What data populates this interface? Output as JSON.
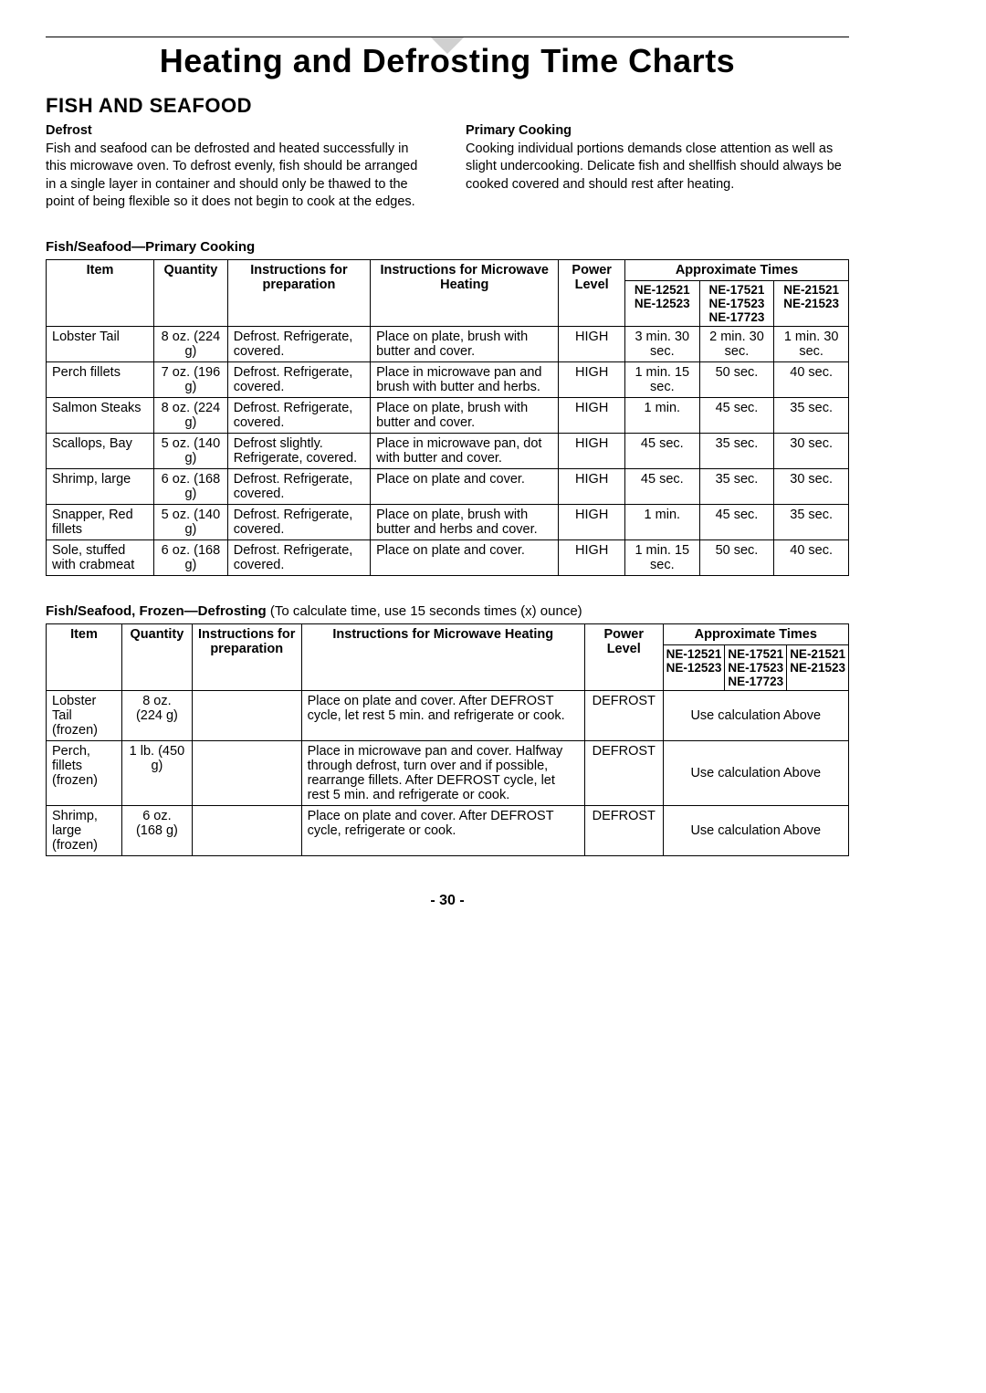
{
  "mainTitle": "Heating and Defrosting Time Charts",
  "sectionTitle": "FISH AND SEAFOOD",
  "defrost": {
    "heading": "Defrost",
    "text": "Fish and seafood can be defrosted and heated successfully in this microwave oven. To defrost evenly, fish should be arranged in a single layer in container and should only be thawed to the point of being flexible so it does not begin to cook at the edges."
  },
  "primary": {
    "heading": "Primary Cooking",
    "text": "Cooking individual portions demands close attention as well as slight undercooking. Delicate fish and shellfish should always be cooked covered and should rest after heating."
  },
  "table1": {
    "label": "Fish/Seafood—Primary Cooking",
    "headers": {
      "item": "Item",
      "quantity": "Quantity",
      "prep": "Instructions for preparation",
      "heat": "Instructions for Microwave Heating",
      "power": "Power Level",
      "approx": "Approximate Times",
      "m1": "NE-12521 NE-12523",
      "m2": "NE-17521 NE-17523 NE-17723",
      "m3": "NE-21521 NE-21523"
    },
    "rows": [
      {
        "item": "Lobster Tail",
        "qty": "8 oz. (224 g)",
        "prep": "Defrost. Refrigerate, covered.",
        "heat": "Place on plate, brush with butter and cover.",
        "power": "HIGH",
        "t1": "3 min. 30 sec.",
        "t2": "2 min. 30 sec.",
        "t3": "1 min. 30 sec."
      },
      {
        "item": "Perch fillets",
        "qty": "7 oz. (196 g)",
        "prep": "Defrost. Refrigerate, covered.",
        "heat": "Place in microwave pan and brush with butter and herbs.",
        "power": "HIGH",
        "t1": "1 min. 15 sec.",
        "t2": "50 sec.",
        "t3": "40 sec."
      },
      {
        "item": "Salmon Steaks",
        "qty": "8 oz. (224 g)",
        "prep": "Defrost. Refrigerate, covered.",
        "heat": "Place on plate, brush with butter and cover.",
        "power": "HIGH",
        "t1": "1 min.",
        "t2": "45 sec.",
        "t3": "35 sec."
      },
      {
        "item": "Scallops, Bay",
        "qty": "5 oz. (140 g)",
        "prep": "Defrost slightly. Refrigerate, covered.",
        "heat": "Place in microwave pan, dot with butter and cover.",
        "power": "HIGH",
        "t1": "45 sec.",
        "t2": "35 sec.",
        "t3": "30 sec."
      },
      {
        "item": "Shrimp, large",
        "qty": "6 oz. (168 g)",
        "prep": "Defrost. Refrigerate, covered.",
        "heat": "Place on plate and cover.",
        "power": "HIGH",
        "t1": "45 sec.",
        "t2": "35 sec.",
        "t3": "30 sec."
      },
      {
        "item": "Snapper, Red fillets",
        "qty": "5 oz. (140 g)",
        "prep": "Defrost. Refrigerate, covered.",
        "heat": "Place on plate, brush with butter and herbs and cover.",
        "power": "HIGH",
        "t1": "1 min.",
        "t2": "45 sec.",
        "t3": "35 sec."
      },
      {
        "item": "Sole, stuffed with crabmeat",
        "qty": "6 oz. (168 g)",
        "prep": "Defrost. Refrigerate, covered.",
        "heat": "Place on plate and cover.",
        "power": "HIGH",
        "t1": "1 min. 15 sec.",
        "t2": "50 sec.",
        "t3": "40 sec."
      }
    ]
  },
  "table2": {
    "label": "Fish/Seafood, Frozen—Defrosting",
    "labelNote": " (To calculate time, use 15 seconds times (x) ounce)",
    "headers": {
      "item": "Item",
      "quantity": "Quantity",
      "prep": "Instructions for preparation",
      "heat": "Instructions for Microwave Heating",
      "power": "Power Level",
      "approx": "Approximate Times",
      "m1": "NE-12521 NE-12523",
      "m2": "NE-17521 NE-17523 NE-17723",
      "m3": "NE-21521 NE-21523"
    },
    "useCalc": "Use calculation Above",
    "rows": [
      {
        "item": "Lobster Tail (frozen)",
        "qty": "8 oz. (224 g)",
        "prep": "",
        "heat": "Place on plate and cover. After DEFROST cycle, let rest 5 min. and refrigerate or cook.",
        "power": "DEFROST"
      },
      {
        "item": "Perch, fillets (frozen)",
        "qty": "1 lb. (450 g)",
        "prep": "",
        "heat": "Place in microwave pan and cover. Halfway through defrost, turn over and if possible, rearrange fillets. After DEFROST cycle, let rest 5 min. and refrigerate or cook.",
        "power": "DEFROST"
      },
      {
        "item": "Shrimp, large (frozen)",
        "qty": "6 oz. (168 g)",
        "prep": "",
        "heat": "Place on plate and cover. After DEFROST cycle, refrigerate or cook.",
        "power": "DEFROST"
      }
    ]
  },
  "pageNum": "- 30 -"
}
